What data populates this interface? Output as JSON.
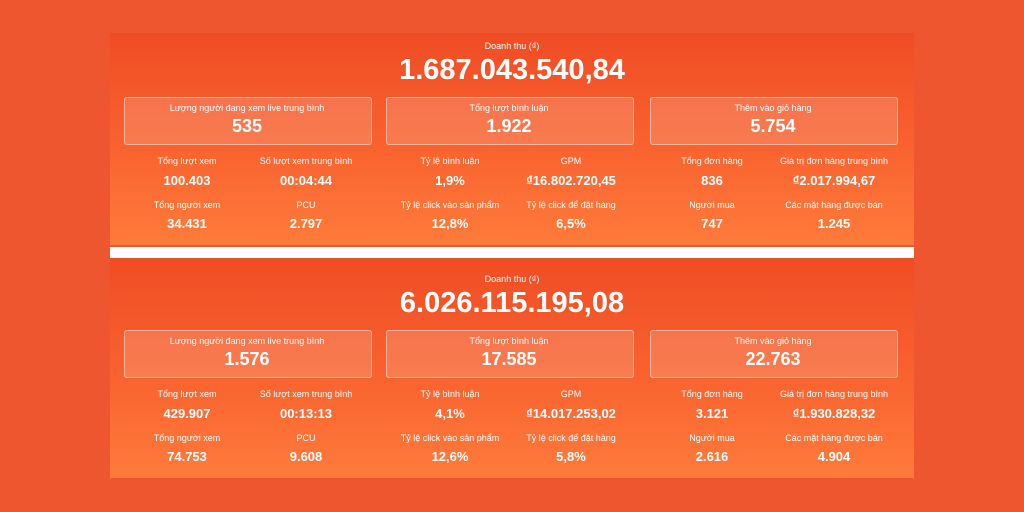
{
  "panels": [
    {
      "title": "Doanh thu (₫)",
      "total": "1.687.043.540,84",
      "groups": [
        {
          "label": "Lượng người đang xem live trung bình",
          "value": "535",
          "stats": [
            {
              "label": "Tổng lượt xem",
              "value": "100.403"
            },
            {
              "label": "Số lượt xem trung bình",
              "value": "00:04:44"
            },
            {
              "label": "Tổng người xem",
              "value": "34.431"
            },
            {
              "label": "PCU",
              "value": "2.797"
            }
          ]
        },
        {
          "label": "Tổng lượt bình luận",
          "value": "1.922",
          "stats": [
            {
              "label": "Tỷ lệ bình luận",
              "value": "1,9%"
            },
            {
              "label": "GPM",
              "value": "₫16.802.720,45"
            },
            {
              "label": "Tỷ lệ click vào sản phẩm",
              "value": "12,8%"
            },
            {
              "label": "Tỷ lệ click để đặt hàng",
              "value": "6,5%"
            }
          ]
        },
        {
          "label": "Thêm vào giỏ hàng",
          "value": "5.754",
          "stats": [
            {
              "label": "Tổng đơn hàng",
              "value": "836"
            },
            {
              "label": "Giá trị đơn hàng trung bình",
              "value": "₫2.017.994,67"
            },
            {
              "label": "Người mua",
              "value": "747"
            },
            {
              "label": "Các mặt hàng được bán",
              "value": "1.245"
            }
          ]
        }
      ]
    },
    {
      "title": "Doanh thu (₫)",
      "total": "6.026.115.195,08",
      "groups": [
        {
          "label": "Lượng người đang xem live trung bình",
          "value": "1.576",
          "stats": [
            {
              "label": "Tổng lượt xem",
              "value": "429.907"
            },
            {
              "label": "Số lượt xem trung bình",
              "value": "00:13:13"
            },
            {
              "label": "Tổng người xem",
              "value": "74.753"
            },
            {
              "label": "PCU",
              "value": "9.608"
            }
          ]
        },
        {
          "label": "Tổng lượt bình luận",
          "value": "17.585",
          "stats": [
            {
              "label": "Tỷ lệ bình luận",
              "value": "4,1%"
            },
            {
              "label": "GPM",
              "value": "₫14.017.253,02"
            },
            {
              "label": "Tỷ lệ click vào sản phẩm",
              "value": "12,6%"
            },
            {
              "label": "Tỷ lệ click để đặt hàng",
              "value": "5,8%"
            }
          ]
        },
        {
          "label": "Thêm vào giỏ hàng",
          "value": "22.763",
          "stats": [
            {
              "label": "Tổng đơn hàng",
              "value": "3.121"
            },
            {
              "label": "Giá trị đơn hàng trung bình",
              "value": "₫1.930.828,32"
            },
            {
              "label": "Người mua",
              "value": "2.616"
            },
            {
              "label": "Các mặt hàng được bán",
              "value": "4.904"
            }
          ]
        }
      ]
    }
  ]
}
